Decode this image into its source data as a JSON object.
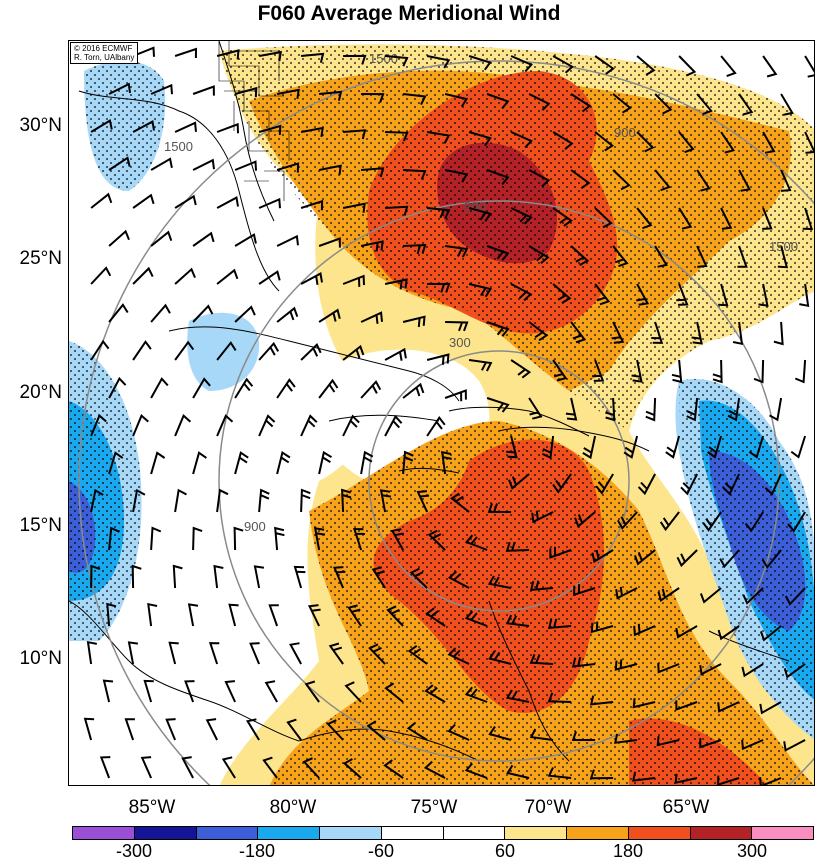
{
  "title": "F060 Average Meridional Wind",
  "credit": [
    "© 2016 ECMWF",
    "R. Torn, UAlbany"
  ],
  "latitude_labels": [
    "30°N",
    "25°N",
    "20°N",
    "15°N",
    "10°N"
  ],
  "longitude_labels": [
    "85°W",
    "80°W",
    "75°W",
    "70°W",
    "65°W"
  ],
  "range_ring_labels": [
    "300",
    "900",
    "1500"
  ],
  "colorbar": {
    "ticks": [
      "-300",
      "-180",
      "-60",
      "60",
      "180",
      "300"
    ],
    "colors": [
      "#9b4fd6",
      "#141496",
      "#3c5fd8",
      "#1aa8ee",
      "#a8d8f8",
      "#ffffff",
      "#ffffff",
      "#fde58e",
      "#f7a21b",
      "#f0501e",
      "#b22226",
      "#fb8ec0"
    ]
  },
  "colors": {
    "light_yellow": "#fde58e",
    "orange": "#f7a21b",
    "red_orange": "#f0501e",
    "dark_red": "#b22226",
    "light_blue": "#a8d8f8",
    "cyan": "#1aa8ee",
    "blue": "#3c5fd8"
  }
}
